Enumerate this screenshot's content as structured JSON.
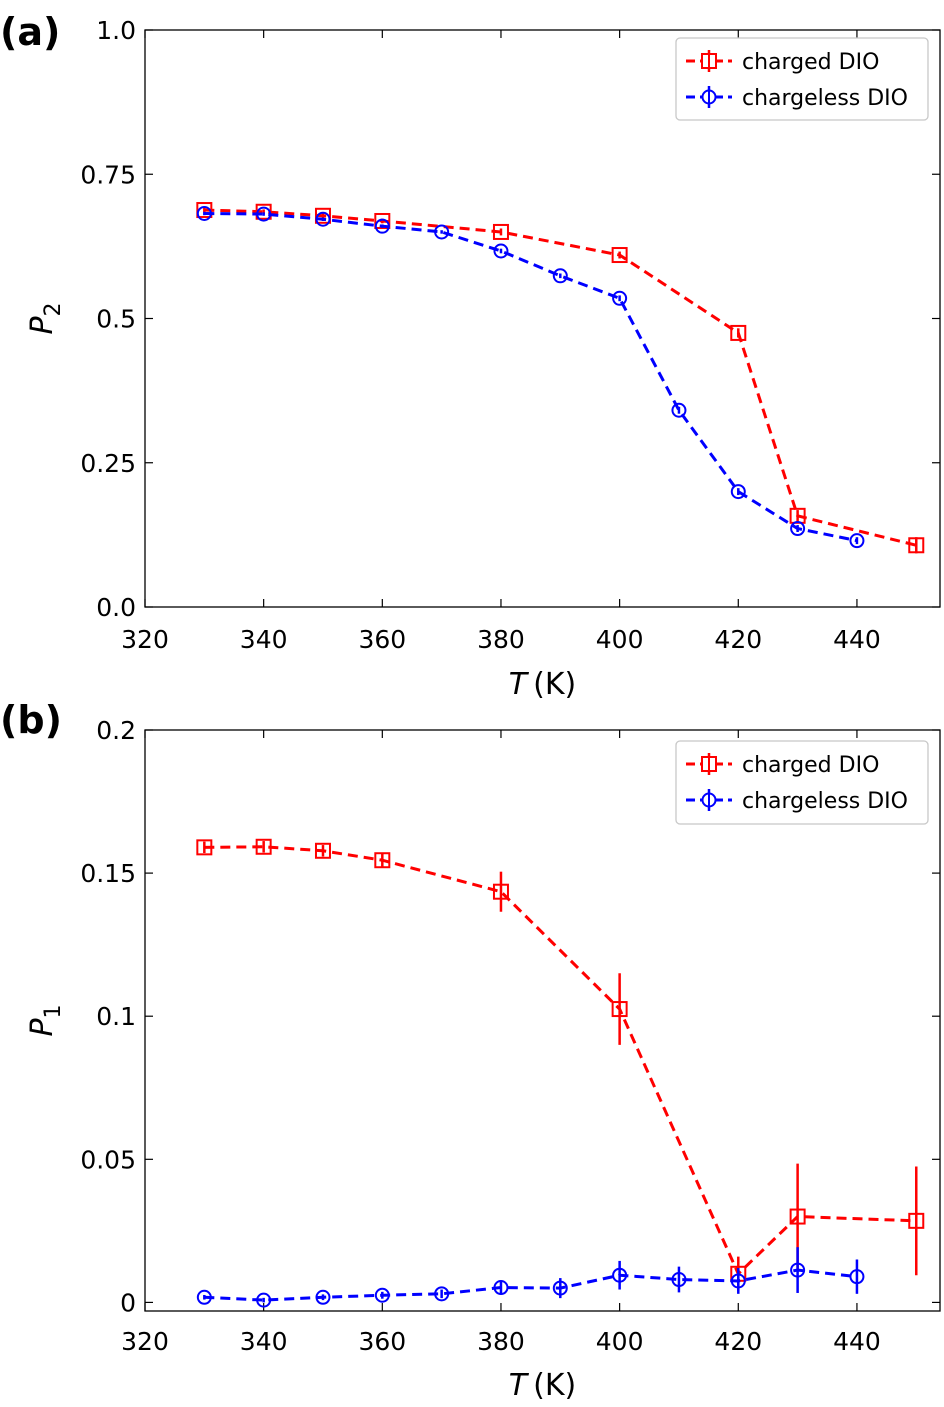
{
  "chart_data": [
    {
      "type": "line",
      "panel_label": "(a)",
      "xlabel": {
        "var": "T",
        "unit": "(K)"
      },
      "ylabel": {
        "var": "P",
        "sub": "2"
      },
      "xlim": [
        320,
        454
      ],
      "ylim": [
        0.0,
        1.0
      ],
      "xticks": [
        {
          "value": 320,
          "label": "320"
        },
        {
          "value": 340,
          "label": "340"
        },
        {
          "value": 360,
          "label": "360"
        },
        {
          "value": 380,
          "label": "380"
        },
        {
          "value": 400,
          "label": "400"
        },
        {
          "value": 420,
          "label": "420"
        },
        {
          "value": 440,
          "label": "440"
        }
      ],
      "yticks": [
        {
          "value": 0.0,
          "label": "0.0"
        },
        {
          "value": 0.25,
          "label": "0.25"
        },
        {
          "value": 0.5,
          "label": "0.5"
        },
        {
          "value": 0.75,
          "label": "0.75"
        },
        {
          "value": 1.0,
          "label": "1.0"
        }
      ],
      "legend_position": "top-right",
      "series": [
        {
          "name": "charged DIO",
          "color": "#ff0000",
          "marker": "square",
          "x": [
            330,
            340,
            350,
            360,
            380,
            400,
            420,
            430,
            450
          ],
          "y": [
            0.688,
            0.685,
            0.678,
            0.669,
            0.65,
            0.61,
            0.475,
            0.158,
            0.107
          ],
          "err": [
            0.004,
            0.004,
            0.004,
            0.004,
            0.006,
            0.006,
            0.008,
            0.01,
            0.014
          ]
        },
        {
          "name": "chargeless DIO",
          "color": "#0000ff",
          "marker": "circle",
          "x": [
            330,
            340,
            350,
            360,
            370,
            380,
            390,
            400,
            410,
            420,
            430,
            440
          ],
          "y": [
            0.682,
            0.681,
            0.672,
            0.66,
            0.65,
            0.617,
            0.574,
            0.535,
            0.341,
            0.2,
            0.136,
            0.115
          ],
          "err": [
            0.003,
            0.003,
            0.003,
            0.003,
            0.003,
            0.004,
            0.004,
            0.005,
            0.006,
            0.006,
            0.006,
            0.006
          ]
        }
      ]
    },
    {
      "type": "line",
      "panel_label": "(b)",
      "xlabel": {
        "var": "T",
        "unit": "(K)"
      },
      "ylabel": {
        "var": "P",
        "sub": "1"
      },
      "xlim": [
        320,
        454
      ],
      "ylim": [
        -0.003,
        0.2
      ],
      "xticks": [
        {
          "value": 320,
          "label": "320"
        },
        {
          "value": 340,
          "label": "340"
        },
        {
          "value": 360,
          "label": "360"
        },
        {
          "value": 380,
          "label": "380"
        },
        {
          "value": 400,
          "label": "400"
        },
        {
          "value": 420,
          "label": "420"
        },
        {
          "value": 440,
          "label": "440"
        }
      ],
      "yticks": [
        {
          "value": 0,
          "label": "0"
        },
        {
          "value": 0.05,
          "label": "0.05"
        },
        {
          "value": 0.1,
          "label": "0.1"
        },
        {
          "value": 0.15,
          "label": "0.15"
        },
        {
          "value": 0.2,
          "label": "0.2"
        }
      ],
      "legend_position": "top-right",
      "series": [
        {
          "name": "charged DIO",
          "color": "#ff0000",
          "marker": "square",
          "x": [
            330,
            340,
            350,
            360,
            380,
            400,
            420,
            430,
            450
          ],
          "y": [
            0.159,
            0.1592,
            0.1578,
            0.1545,
            0.1435,
            0.1025,
            0.01,
            0.03,
            0.0285
          ],
          "err": [
            0.002,
            0.002,
            0.002,
            0.0025,
            0.007,
            0.0125,
            0.006,
            0.0185,
            0.019
          ]
        },
        {
          "name": "chargeless DIO",
          "color": "#0000ff",
          "marker": "circle",
          "x": [
            330,
            340,
            350,
            360,
            370,
            380,
            390,
            400,
            410,
            420,
            430,
            440
          ],
          "y": [
            0.0018,
            0.0008,
            0.0018,
            0.0025,
            0.003,
            0.0052,
            0.005,
            0.0095,
            0.008,
            0.0075,
            0.0113,
            0.009
          ],
          "err": [
            0.0008,
            0.0008,
            0.001,
            0.0012,
            0.0015,
            0.0025,
            0.0035,
            0.005,
            0.0045,
            0.0045,
            0.008,
            0.006
          ]
        }
      ]
    }
  ]
}
